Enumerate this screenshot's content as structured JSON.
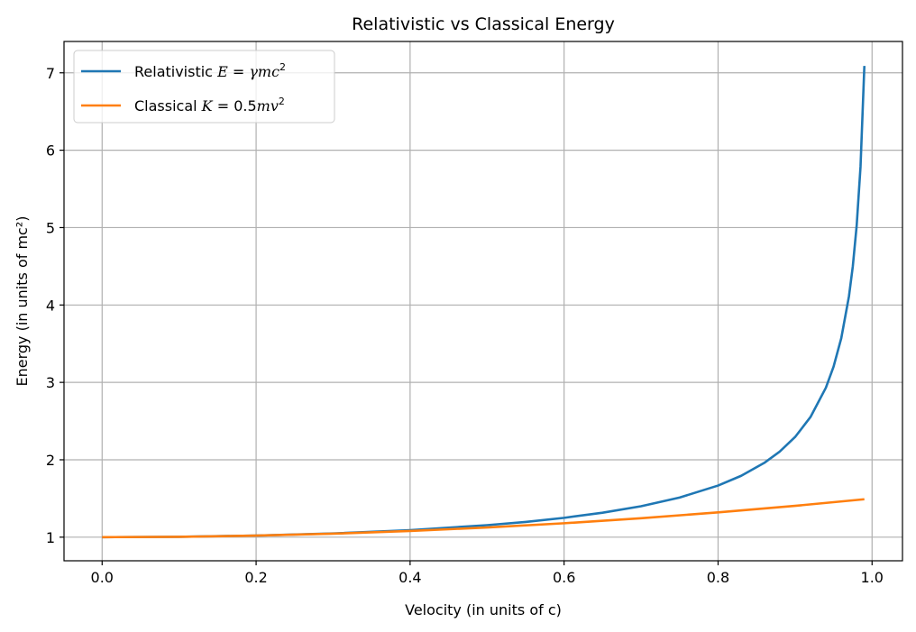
{
  "chart_data": {
    "type": "line",
    "title": "Relativistic vs Classical Energy",
    "xlabel": "Velocity (in units of c)",
    "ylabel": "Energy (in units of mc²)",
    "xlim": [
      -0.0495,
      1.0395
    ],
    "ylim": [
      0.695,
      7.405
    ],
    "xticks": [
      0.0,
      0.2,
      0.4,
      0.6,
      0.8,
      1.0
    ],
    "xtick_labels": [
      "0.0",
      "0.2",
      "0.4",
      "0.6",
      "0.8",
      "1.0"
    ],
    "yticks": [
      1,
      2,
      3,
      4,
      5,
      6,
      7
    ],
    "ytick_labels": [
      "1",
      "2",
      "3",
      "4",
      "5",
      "6",
      "7"
    ],
    "grid": true,
    "legend_position": "top-left",
    "series": [
      {
        "name": "Relativistic E = γmc²",
        "legend_prefix": "Relativistic ",
        "legend_formula": [
          "E",
          " = ",
          "γmc",
          "2"
        ],
        "color": "#1f77b4",
        "x": [
          0.0,
          0.1,
          0.2,
          0.3,
          0.4,
          0.5,
          0.55,
          0.6,
          0.65,
          0.7,
          0.75,
          0.8,
          0.83,
          0.86,
          0.88,
          0.9,
          0.92,
          0.94,
          0.95,
          0.96,
          0.97,
          0.975,
          0.98,
          0.985,
          0.99
        ],
        "y": [
          1.0,
          1.005,
          1.021,
          1.048,
          1.091,
          1.155,
          1.197,
          1.25,
          1.316,
          1.4,
          1.512,
          1.667,
          1.793,
          1.96,
          2.105,
          2.294,
          2.552,
          2.931,
          3.203,
          3.571,
          4.113,
          4.5,
          5.025,
          5.786,
          7.089
        ]
      },
      {
        "name": "Classical K = 0.5mv²",
        "legend_prefix": "Classical ",
        "legend_formula": [
          "K",
          " = 0.5",
          "mv",
          "2"
        ],
        "color": "#ff7f0e",
        "x": [
          0.0,
          0.1,
          0.2,
          0.3,
          0.4,
          0.5,
          0.6,
          0.7,
          0.8,
          0.9,
          0.99
        ],
        "y": [
          1.0,
          1.005,
          1.02,
          1.045,
          1.08,
          1.125,
          1.18,
          1.245,
          1.32,
          1.405,
          1.49
        ]
      }
    ]
  }
}
